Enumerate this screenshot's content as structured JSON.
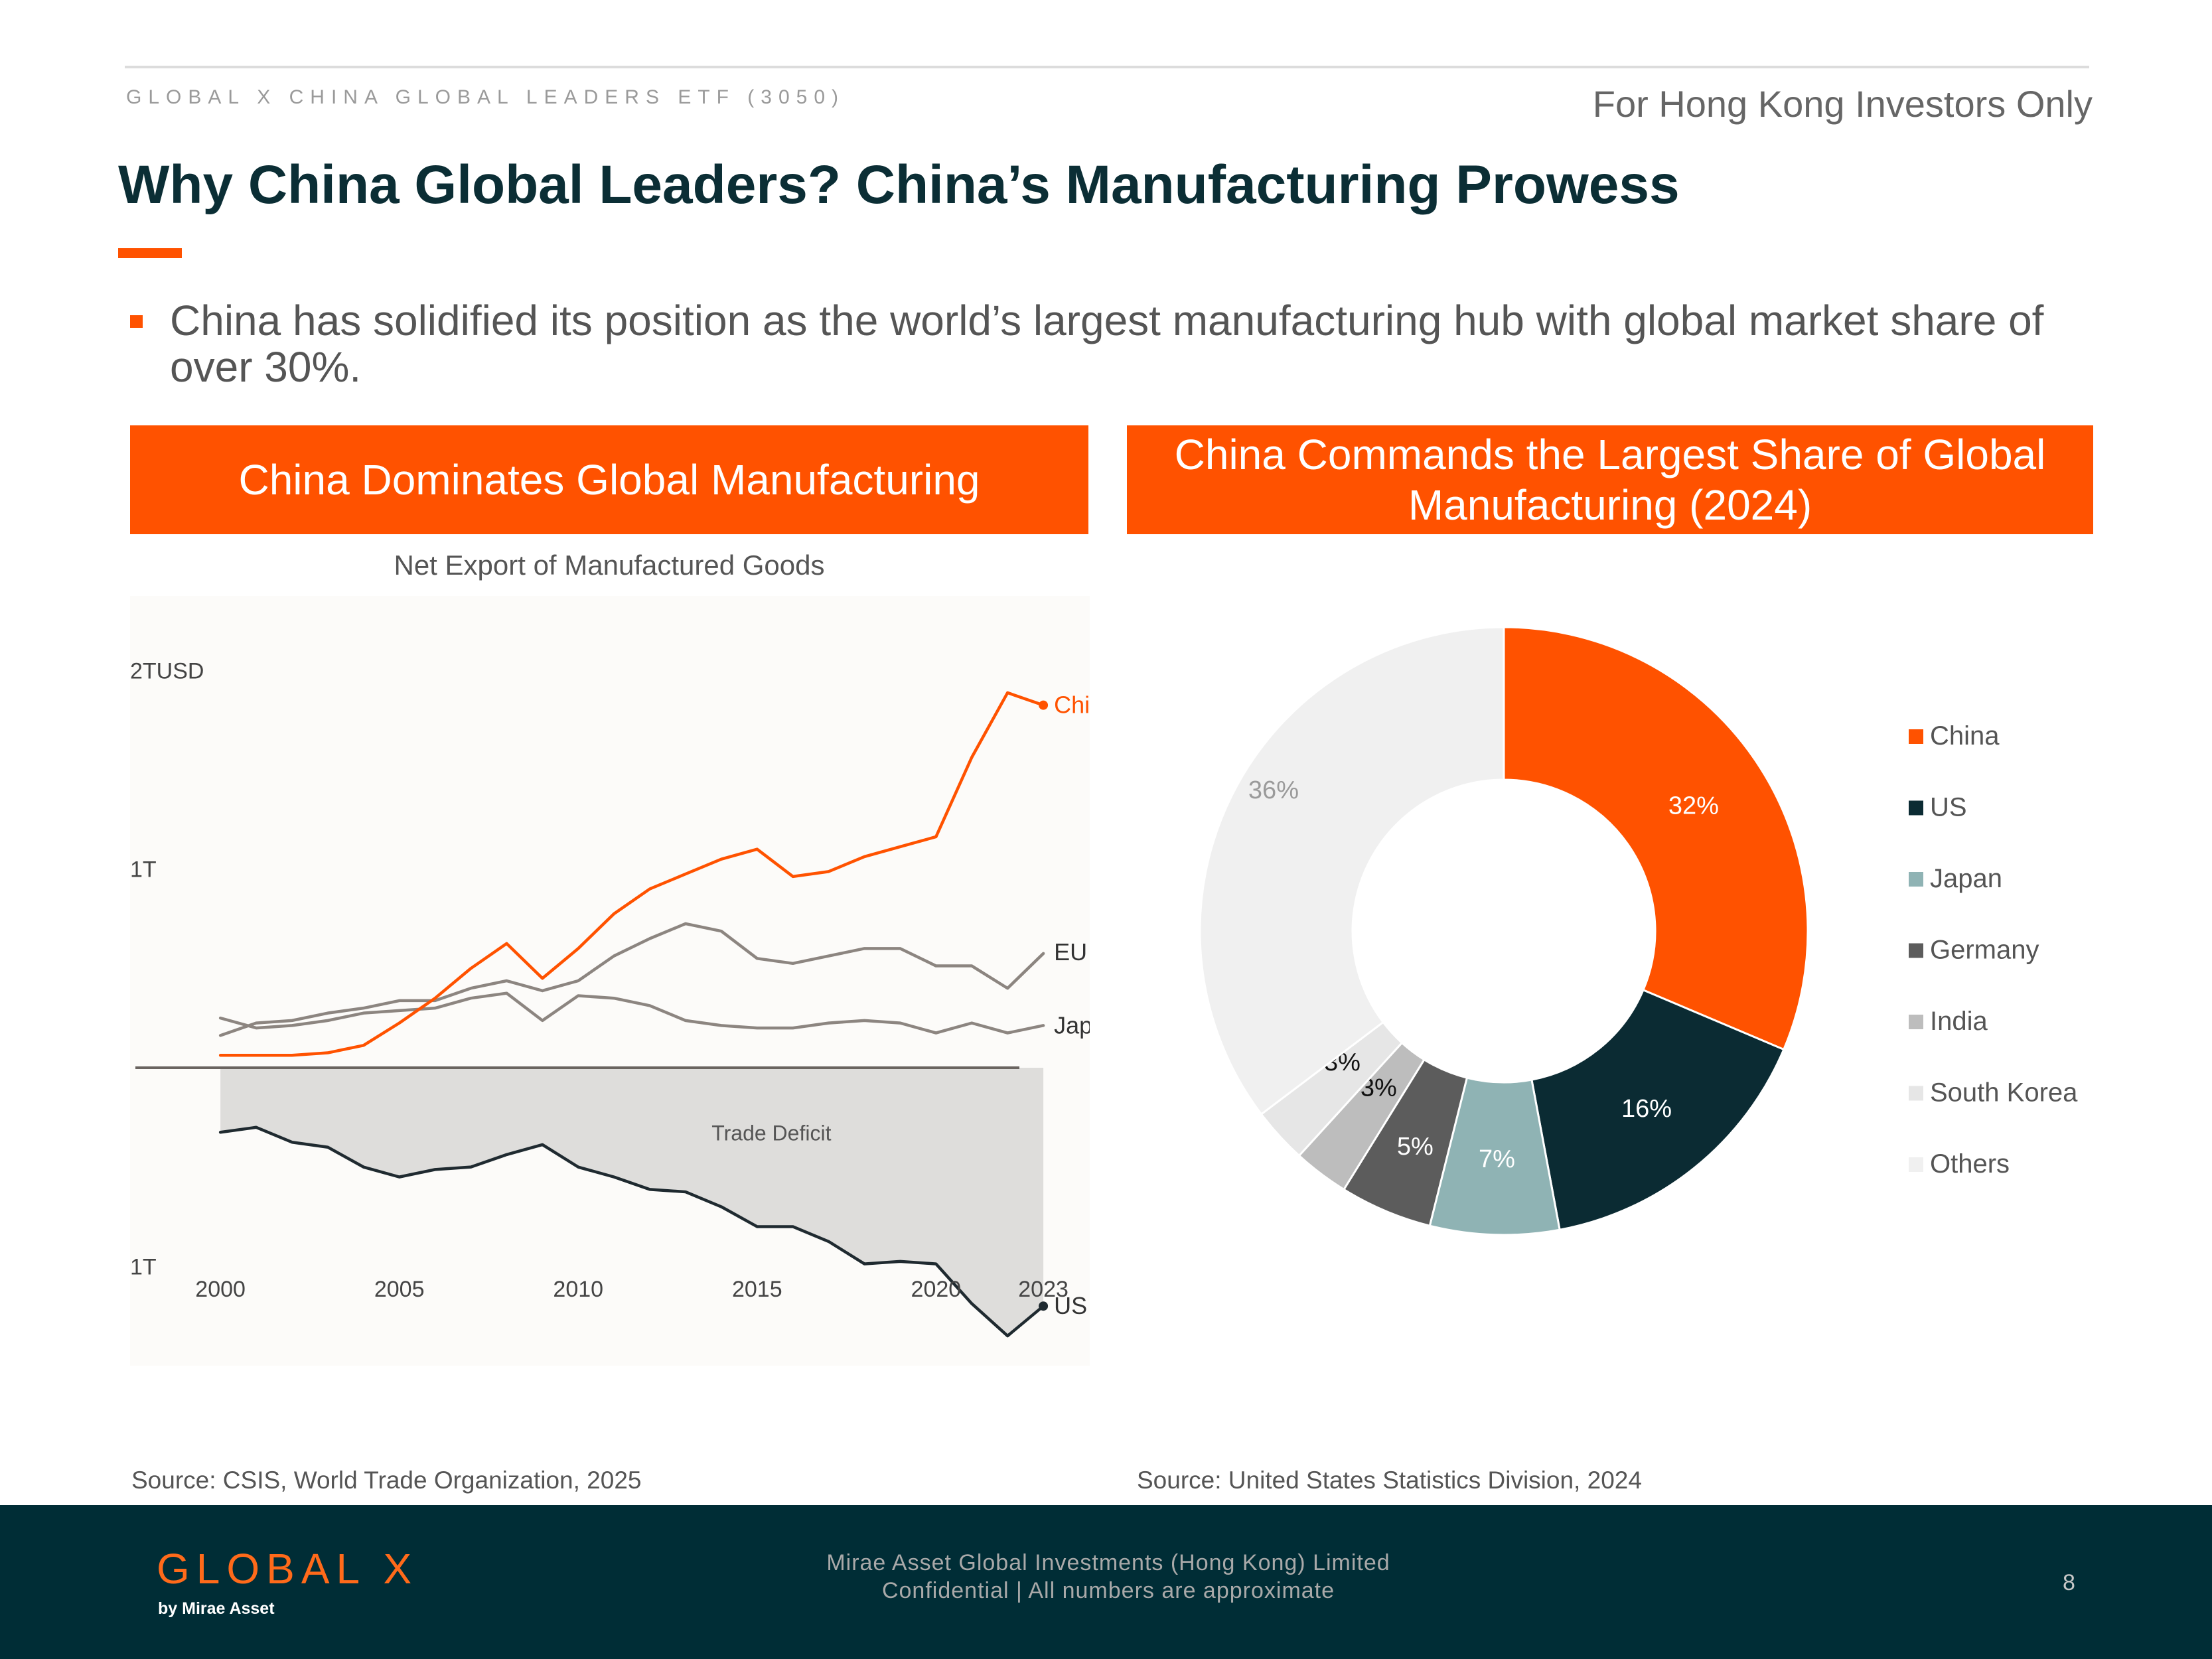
{
  "header": {
    "fund_name": "GLOBAL X CHINA GLOBAL LEADERS ETF (3050)",
    "audience": "For Hong Kong Investors Only",
    "title": "Why China Global Leaders? China’s Manufacturing Prowess"
  },
  "bullet": "China has solidified its position as the world’s largest manufacturing hub with global market share of over 30%.",
  "left_panel": {
    "banner": "China Dominates Global Manufacturing",
    "subtitle": "Net Export of Manufactured Goods",
    "source": "Source: CSIS, World Trade Organization, 2025"
  },
  "right_panel": {
    "banner": "China Commands the Largest Share of Global Manufacturing (2024)",
    "source": "Source: United States Statistics Division, 2024"
  },
  "footer": {
    "logo": "GLOBAL X",
    "logo_sub": "by Mirae Asset",
    "company": "Mirae Asset Global Investments (Hong Kong) Limited",
    "disclaimer": "Confidential | All numbers are approximate",
    "page_number": "8"
  },
  "colors": {
    "accent": "#ff5200",
    "dark": "#002d36",
    "title": "#0b2e35"
  },
  "chart_data": [
    {
      "type": "line",
      "title": "Net Export of Manufactured Goods",
      "ylabel": "",
      "y_unit_label": "2TUSD",
      "y_tick_labels": [
        {
          "value": 1.6,
          "label": "2TUSD"
        },
        {
          "value": 0.8,
          "label": "1T"
        },
        {
          "value": -0.8,
          "label": "1T"
        }
      ],
      "x_tick_labels": [
        "2000",
        "2005",
        "2010",
        "2015",
        "2020",
        "2023"
      ],
      "ylim": [
        -1.2,
        1.9
      ],
      "xlim": [
        1999.2,
        2024.0
      ],
      "x": [
        2000,
        2001,
        2002,
        2003,
        2004,
        2005,
        2006,
        2007,
        2008,
        2009,
        2010,
        2011,
        2012,
        2013,
        2014,
        2015,
        2016,
        2017,
        2018,
        2019,
        2020,
        2021,
        2022,
        2023
      ],
      "series": [
        {
          "name": "China",
          "color": "#ff5200",
          "values": [
            0.05,
            0.05,
            0.05,
            0.06,
            0.09,
            0.18,
            0.28,
            0.4,
            0.5,
            0.36,
            0.48,
            0.62,
            0.72,
            0.78,
            0.84,
            0.88,
            0.77,
            0.79,
            0.85,
            0.89,
            0.93,
            1.25,
            1.51,
            1.46
          ]
        },
        {
          "name": "EU",
          "color": "#8c8580",
          "values": [
            0.13,
            0.18,
            0.19,
            0.22,
            0.24,
            0.27,
            0.27,
            0.32,
            0.35,
            0.31,
            0.35,
            0.45,
            0.52,
            0.58,
            0.55,
            0.44,
            0.42,
            0.45,
            0.48,
            0.48,
            0.41,
            0.41,
            0.32,
            0.46
          ]
        },
        {
          "name": "Japan",
          "color": "#8c8580",
          "values": [
            0.2,
            0.16,
            0.17,
            0.19,
            0.22,
            0.23,
            0.24,
            0.28,
            0.3,
            0.19,
            0.29,
            0.28,
            0.25,
            0.19,
            0.17,
            0.16,
            0.16,
            0.18,
            0.19,
            0.18,
            0.14,
            0.18,
            0.14,
            0.17
          ]
        },
        {
          "name": "US",
          "color": "#1f2a30",
          "values": [
            -0.26,
            -0.24,
            -0.3,
            -0.32,
            -0.4,
            -0.44,
            -0.41,
            -0.4,
            -0.35,
            -0.31,
            -0.4,
            -0.44,
            -0.49,
            -0.5,
            -0.56,
            -0.64,
            -0.64,
            -0.7,
            -0.79,
            -0.78,
            -0.79,
            -0.95,
            -1.08,
            -0.96
          ]
        }
      ],
      "annotations": [
        {
          "text": "Trade Deficit"
        }
      ],
      "grid": false,
      "legend": "inline labels at line ends"
    },
    {
      "type": "pie",
      "subtype": "donut",
      "title": "China Commands the Largest Share of Global Manufacturing (2024)",
      "labels": [
        "China",
        "US",
        "Japan",
        "Germany",
        "India",
        "South Korea",
        "Others"
      ],
      "values": [
        32,
        16,
        7,
        5,
        3,
        3,
        36
      ],
      "value_labels": [
        "32%",
        "16%",
        "7%",
        "5%",
        "3%",
        "3%",
        "36%"
      ],
      "colors": [
        "#ff5200",
        "#0b2b33",
        "#8fb3b4",
        "#5c5c5c",
        "#bdbdbd",
        "#e6e6e6",
        "#f0f0f0"
      ],
      "legend": "right"
    }
  ]
}
